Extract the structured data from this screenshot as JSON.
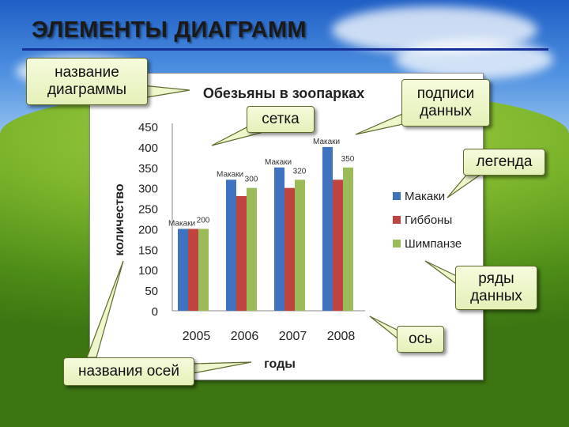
{
  "slide": {
    "title": "ЭЛЕМЕНТЫ ДИАГРАММ"
  },
  "callouts": {
    "chart_title": "название\nдиаграммы",
    "grid": "сетка",
    "data_labels": "подписи\nданных",
    "legend": "легенда",
    "series": "ряды\nданных",
    "axis": "ось",
    "axis_titles": "названия осей"
  },
  "colors": {
    "macaques": "#3f72bf",
    "gibbons": "#bf4440",
    "chimpanzees": "#9bbb59",
    "callout_fill": "#eef6cc",
    "title_rule": "#17309a"
  },
  "chart_data": {
    "type": "bar",
    "title": "Обезьяны в зоопарках",
    "xlabel": "годы",
    "ylabel": "количество",
    "categories": [
      "2005",
      "2006",
      "2007",
      "2008"
    ],
    "ylim": [
      0,
      450
    ],
    "yticks": [
      0,
      50,
      100,
      150,
      200,
      250,
      300,
      350,
      400,
      450
    ],
    "grid": false,
    "legend_position": "right",
    "series": [
      {
        "name": "Макаки",
        "values": [
          200,
          320,
          350,
          400
        ]
      },
      {
        "name": "Гиббоны",
        "values": [
          200,
          280,
          300,
          320
        ]
      },
      {
        "name": "Шимпанзе",
        "values": [
          200,
          300,
          320,
          350
        ]
      }
    ],
    "data_labels": [
      {
        "category": "2005",
        "series": "Макаки",
        "text": "Макаки"
      },
      {
        "category": "2005",
        "series": "Шимпанзе",
        "text": "200"
      },
      {
        "category": "2006",
        "series": "Макаки",
        "text": "Макаки"
      },
      {
        "category": "2006",
        "series": "Шимпанзе",
        "text": "300"
      },
      {
        "category": "2007",
        "series": "Макаки",
        "text": "Макаки"
      },
      {
        "category": "2007",
        "series": "Шимпанзе",
        "text": "320"
      },
      {
        "category": "2008",
        "series": "Макаки",
        "text": "Макаки"
      },
      {
        "category": "2008",
        "series": "Шимпанзе",
        "text": "350"
      }
    ]
  }
}
